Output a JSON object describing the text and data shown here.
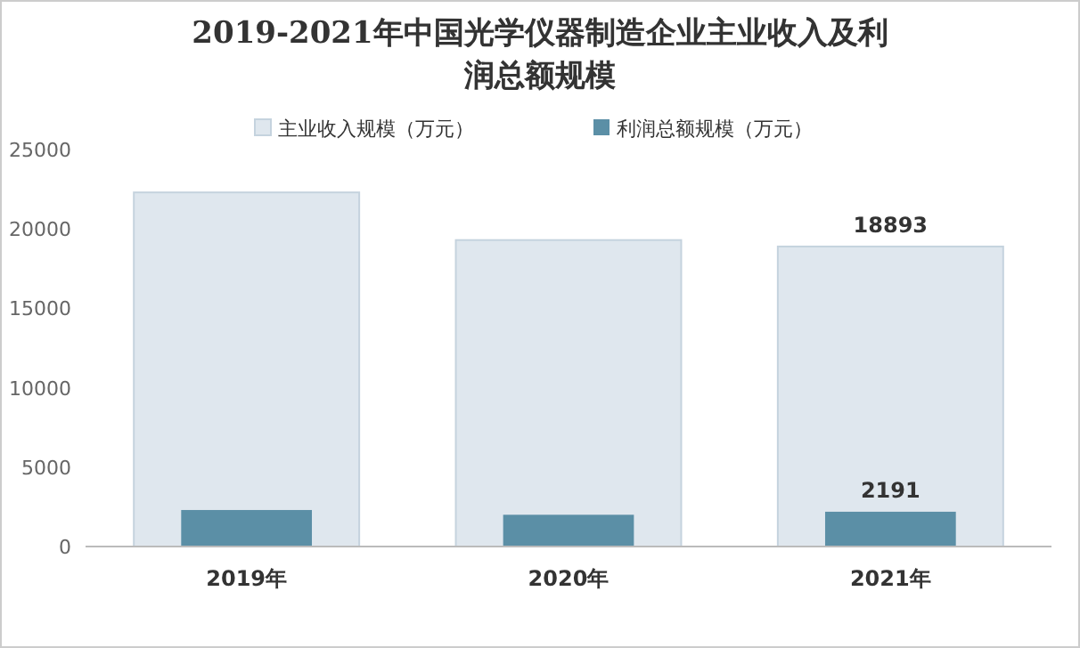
{
  "chart_data": {
    "type": "bar",
    "title": "2019-2021年中国光学仪器制造企业主业收入及利润总额规模",
    "categories": [
      "2019年",
      "2020年",
      "2021年"
    ],
    "series": [
      {
        "name": "主业收入规模（万元）",
        "color": "#dfe7ee",
        "values": [
          22300,
          19300,
          18893
        ],
        "value_labels": [
          null,
          null,
          "18893"
        ]
      },
      {
        "name": "利润总额规模（万元）",
        "color": "#5b8fa6",
        "values": [
          2300,
          2000,
          2191
        ],
        "value_labels": [
          null,
          null,
          "2191"
        ]
      }
    ],
    "ylim": [
      0,
      25000
    ],
    "yticks": [
      0,
      5000,
      10000,
      15000,
      20000,
      25000
    ],
    "grid": false,
    "legend": "top"
  }
}
